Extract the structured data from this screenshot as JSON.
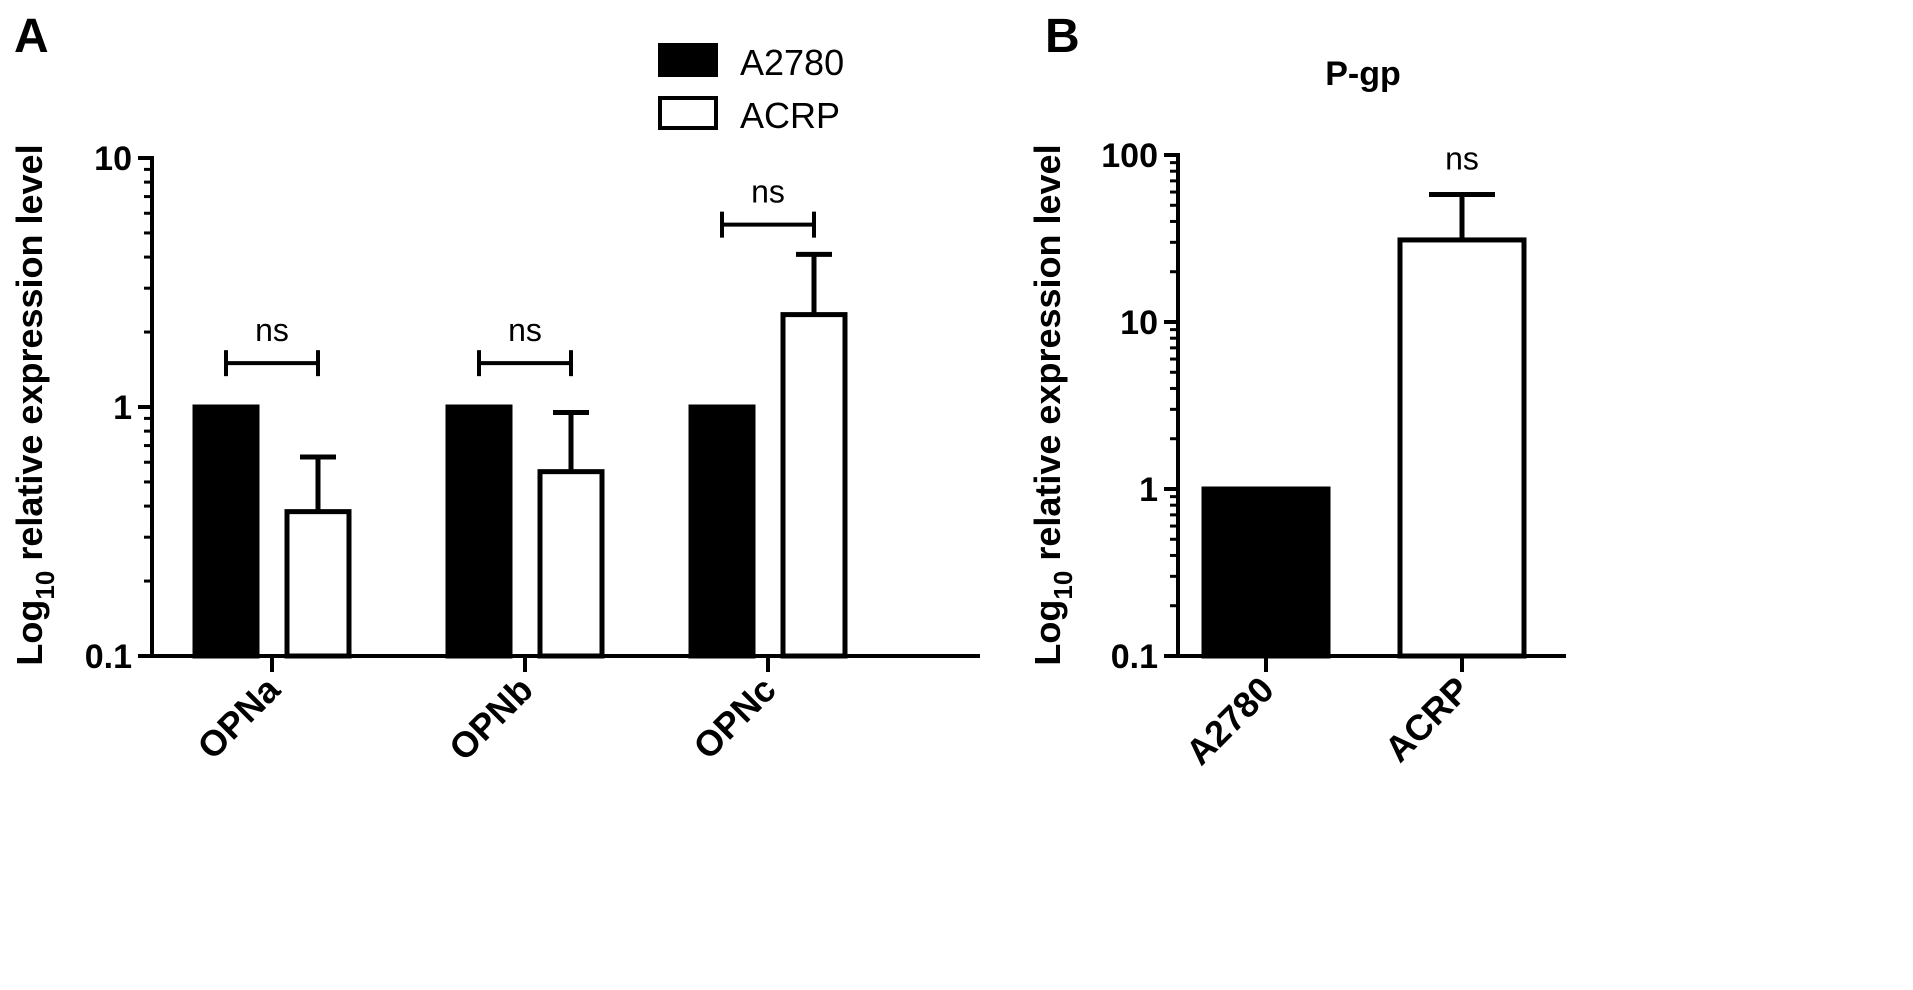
{
  "chart_data": [
    {
      "panel": "A",
      "type": "bar",
      "log_scale": true,
      "ylim": [
        0.1,
        10
      ],
      "yticks": [
        "0.1",
        "1",
        "10"
      ],
      "ylabel_prefix": "Log",
      "ylabel_sub": "10",
      "ylabel_suffix": " relative expression level",
      "categories": [
        "OPNa",
        "OPNb",
        "OPNc"
      ],
      "series": [
        {
          "name": "A2780",
          "values": [
            1,
            1,
            1
          ],
          "errors": [
            null,
            null,
            null
          ],
          "fill": "#000000"
        },
        {
          "name": "ACRP",
          "values": [
            0.38,
            0.55,
            2.35
          ],
          "errors": [
            0.63,
            0.95,
            4.1
          ],
          "fill": "#ffffff"
        }
      ],
      "annotations": [
        "ns",
        "ns",
        "ns"
      ],
      "annotation_y": [
        1.5,
        1.5,
        5.4
      ],
      "legend": "top-right"
    },
    {
      "panel": "B",
      "type": "bar",
      "log_scale": true,
      "title": "P-gp",
      "ylim": [
        0.1,
        100
      ],
      "yticks": [
        "0.1",
        "1",
        "10",
        "100"
      ],
      "ylabel_prefix": "Log",
      "ylabel_sub": "10",
      "ylabel_suffix": " relative expression level",
      "categories": [
        "A2780",
        "ACRP"
      ],
      "values": [
        1,
        31
      ],
      "errors": [
        null,
        58
      ],
      "fills": [
        "#000000",
        "#ffffff"
      ],
      "annotations": [
        "",
        "ns"
      ]
    }
  ]
}
